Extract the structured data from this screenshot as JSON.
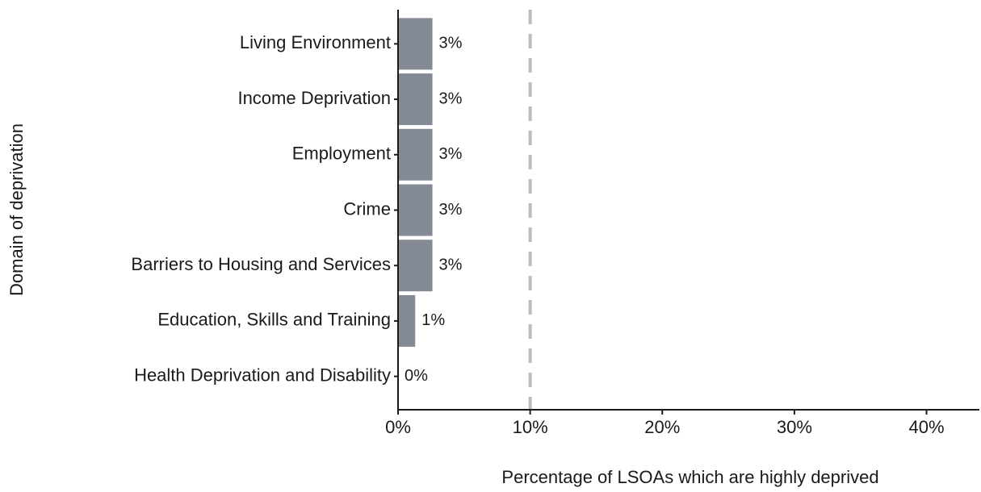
{
  "chart_data": {
    "type": "barh",
    "xlabel": "Percentage of LSOAs which are highly deprived",
    "ylabel": "Domain of deprivation",
    "categories": [
      "Living Environment",
      "Income Deprivation",
      "Employment",
      "Crime",
      "Barriers to Housing and Services",
      "Education, Skills and Training",
      "Health Deprivation and Disability"
    ],
    "values": [
      2.6,
      2.6,
      2.6,
      2.6,
      2.6,
      1.3,
      0
    ],
    "value_labels": [
      "3%",
      "3%",
      "3%",
      "3%",
      "3%",
      "1%",
      "0%"
    ],
    "color": "#858b96",
    "xlim": [
      0,
      44
    ],
    "xticks": [
      {
        "value": 0,
        "label": "0%"
      },
      {
        "value": 10,
        "label": "10%"
      },
      {
        "value": 20,
        "label": "20%"
      },
      {
        "value": 30,
        "label": "30%"
      },
      {
        "value": 40,
        "label": "40%"
      }
    ],
    "reference_line": 10,
    "reference_color": "#bbbbbb"
  }
}
